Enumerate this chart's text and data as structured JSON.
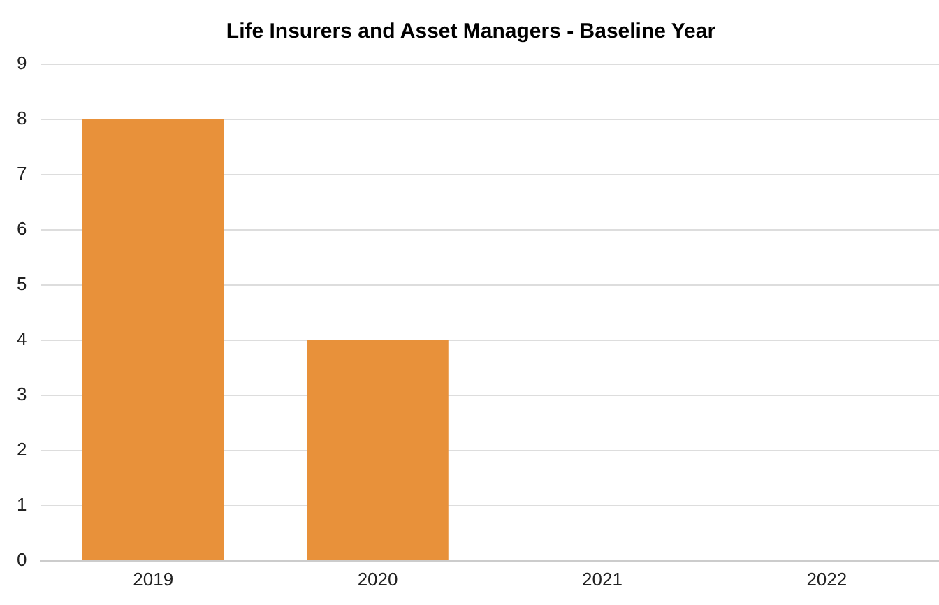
{
  "chart_data": {
    "type": "bar",
    "title": "Life Insurers and Asset Managers - Baseline Year",
    "categories": [
      "2019",
      "2020",
      "2021",
      "2022"
    ],
    "values": [
      8,
      4,
      0,
      0
    ],
    "color": "#e8913a",
    "ylim": [
      0,
      9
    ],
    "yticks": [
      0,
      1,
      2,
      3,
      4,
      5,
      6,
      7,
      8,
      9
    ],
    "grid": "y"
  }
}
